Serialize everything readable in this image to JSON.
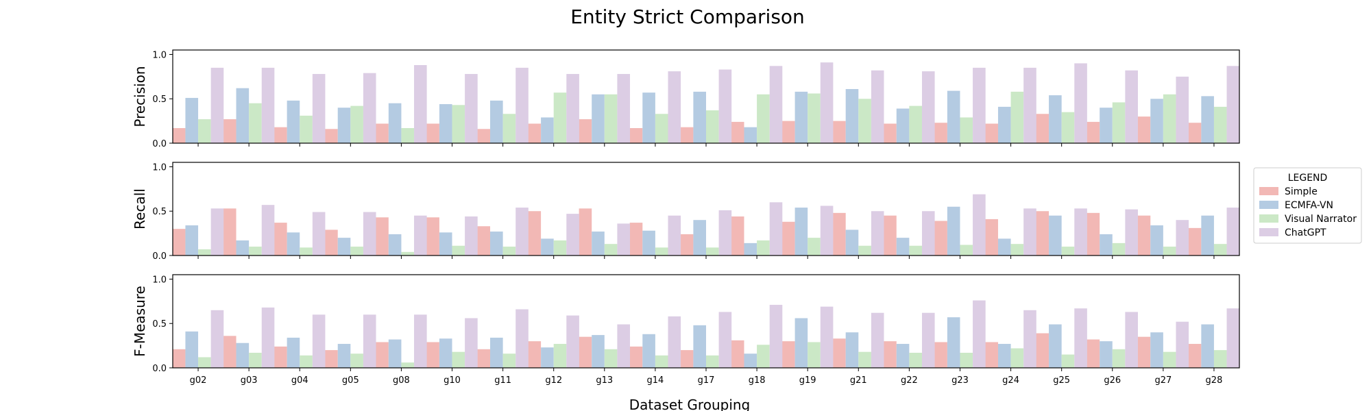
{
  "chart_data": {
    "type": "bar",
    "title": "Entity Strict Comparison",
    "xlabel": "Dataset Grouping",
    "categories": [
      "g02",
      "g03",
      "g04",
      "g05",
      "g08",
      "g10",
      "g11",
      "g12",
      "g13",
      "g14",
      "g17",
      "g18",
      "g19",
      "g21",
      "g22",
      "g23",
      "g24",
      "g25",
      "g26",
      "g27",
      "g28"
    ],
    "legend": {
      "title": "LEGEND",
      "placement": "right",
      "entries": [
        "Simple",
        "ECMFA-VN",
        "Visual Narrator",
        "ChatGPT"
      ]
    },
    "colors": {
      "Simple": "#f2b8b5",
      "ECMFA-VN": "#b4cbe2",
      "Visual Narrator": "#cbe8c6",
      "ChatGPT": "#dccde4"
    },
    "ylim": [
      0,
      1.05
    ],
    "yticks": [
      "0.0",
      "0.5",
      "1.0"
    ],
    "grid": false,
    "panels": [
      {
        "ylabel": "Precision",
        "series": [
          {
            "name": "Simple",
            "values": [
              0.17,
              0.27,
              0.18,
              0.16,
              0.22,
              0.22,
              0.16,
              0.22,
              0.27,
              0.17,
              0.18,
              0.24,
              0.25,
              0.25,
              0.22,
              0.23,
              0.22,
              0.33,
              0.24,
              0.3,
              0.23
            ]
          },
          {
            "name": "ECMFA-VN",
            "values": [
              0.51,
              0.62,
              0.48,
              0.4,
              0.45,
              0.44,
              0.48,
              0.29,
              0.55,
              0.57,
              0.58,
              0.18,
              0.58,
              0.61,
              0.39,
              0.59,
              0.41,
              0.54,
              0.4,
              0.5,
              0.53
            ]
          },
          {
            "name": "Visual Narrator",
            "values": [
              0.27,
              0.45,
              0.31,
              0.42,
              0.17,
              0.43,
              0.33,
              0.57,
              0.55,
              0.33,
              0.37,
              0.55,
              0.56,
              0.5,
              0.42,
              0.29,
              0.58,
              0.35,
              0.46,
              0.55,
              0.41
            ]
          },
          {
            "name": "ChatGPT",
            "values": [
              0.85,
              0.85,
              0.78,
              0.79,
              0.88,
              0.78,
              0.85,
              0.78,
              0.78,
              0.81,
              0.83,
              0.87,
              0.91,
              0.82,
              0.81,
              0.85,
              0.85,
              0.9,
              0.82,
              0.75,
              0.87
            ]
          }
        ]
      },
      {
        "ylabel": "Recall",
        "series": [
          {
            "name": "Simple",
            "values": [
              0.3,
              0.53,
              0.37,
              0.29,
              0.43,
              0.43,
              0.33,
              0.5,
              0.53,
              0.37,
              0.24,
              0.44,
              0.38,
              0.48,
              0.45,
              0.39,
              0.41,
              0.5,
              0.48,
              0.45,
              0.31
            ]
          },
          {
            "name": "ECMFA-VN",
            "values": [
              0.34,
              0.17,
              0.26,
              0.2,
              0.24,
              0.26,
              0.27,
              0.19,
              0.27,
              0.28,
              0.4,
              0.14,
              0.54,
              0.29,
              0.2,
              0.55,
              0.19,
              0.45,
              0.24,
              0.34,
              0.45
            ]
          },
          {
            "name": "Visual Narrator",
            "values": [
              0.07,
              0.1,
              0.09,
              0.1,
              0.04,
              0.11,
              0.1,
              0.17,
              0.13,
              0.09,
              0.09,
              0.17,
              0.2,
              0.11,
              0.11,
              0.12,
              0.13,
              0.1,
              0.14,
              0.1,
              0.13
            ]
          },
          {
            "name": "ChatGPT",
            "values": [
              0.53,
              0.57,
              0.49,
              0.49,
              0.45,
              0.44,
              0.54,
              0.47,
              0.36,
              0.45,
              0.51,
              0.6,
              0.56,
              0.5,
              0.5,
              0.69,
              0.53,
              0.53,
              0.52,
              0.4,
              0.54
            ]
          }
        ]
      },
      {
        "ylabel": "F-Measure",
        "series": [
          {
            "name": "Simple",
            "values": [
              0.21,
              0.36,
              0.24,
              0.2,
              0.29,
              0.29,
              0.21,
              0.3,
              0.35,
              0.24,
              0.2,
              0.31,
              0.3,
              0.33,
              0.3,
              0.29,
              0.29,
              0.39,
              0.32,
              0.35,
              0.27
            ]
          },
          {
            "name": "ECMFA-VN",
            "values": [
              0.41,
              0.28,
              0.34,
              0.27,
              0.32,
              0.33,
              0.34,
              0.23,
              0.37,
              0.38,
              0.48,
              0.16,
              0.56,
              0.4,
              0.27,
              0.57,
              0.27,
              0.49,
              0.3,
              0.4,
              0.49
            ]
          },
          {
            "name": "Visual Narrator",
            "values": [
              0.12,
              0.17,
              0.14,
              0.16,
              0.06,
              0.18,
              0.16,
              0.27,
              0.21,
              0.14,
              0.14,
              0.26,
              0.29,
              0.18,
              0.17,
              0.17,
              0.22,
              0.15,
              0.21,
              0.18,
              0.2
            ]
          },
          {
            "name": "ChatGPT",
            "values": [
              0.65,
              0.68,
              0.6,
              0.6,
              0.6,
              0.56,
              0.66,
              0.59,
              0.49,
              0.58,
              0.63,
              0.71,
              0.69,
              0.62,
              0.62,
              0.76,
              0.65,
              0.67,
              0.63,
              0.52,
              0.67
            ]
          }
        ]
      }
    ]
  }
}
